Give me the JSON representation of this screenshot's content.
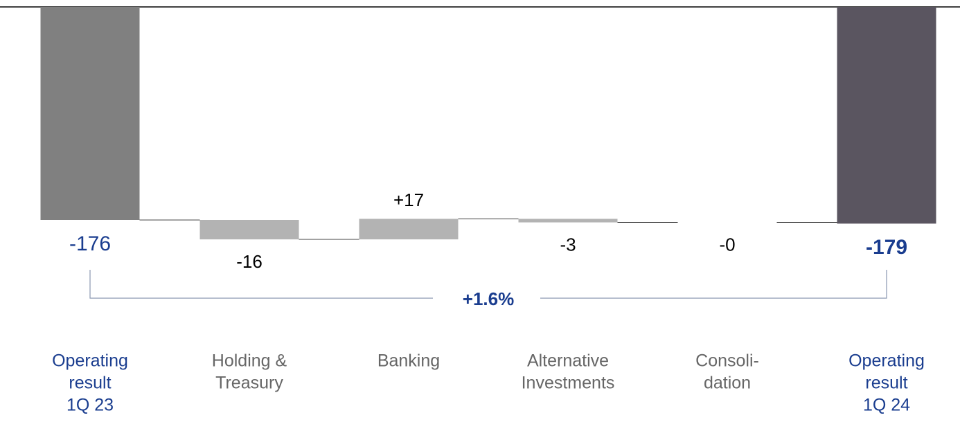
{
  "chart_data": {
    "type": "waterfall",
    "categories": [
      [
        "Operating",
        "result",
        "1Q 23"
      ],
      [
        "Holding &",
        "Treasury"
      ],
      [
        "Banking"
      ],
      [
        "Alternative",
        "Investments"
      ],
      [
        "Consoli-",
        "dation"
      ],
      [
        "Operating",
        "result",
        "1Q 24"
      ]
    ],
    "measure": [
      "absolute",
      "relative",
      "relative",
      "relative",
      "relative",
      "absolute"
    ],
    "values": [
      -176,
      -16,
      17,
      -3,
      0,
      -179
    ],
    "value_labels": [
      "-176",
      "-16",
      "+17",
      "-3",
      "-0",
      "-179"
    ],
    "colors": [
      "#808080",
      "#b3b3b3",
      "#b3b3b3",
      "#b3b3b3",
      "#b3b3b3",
      "#5a5560"
    ],
    "ylim": [
      -200,
      0
    ],
    "annotation": "+1.6%"
  }
}
